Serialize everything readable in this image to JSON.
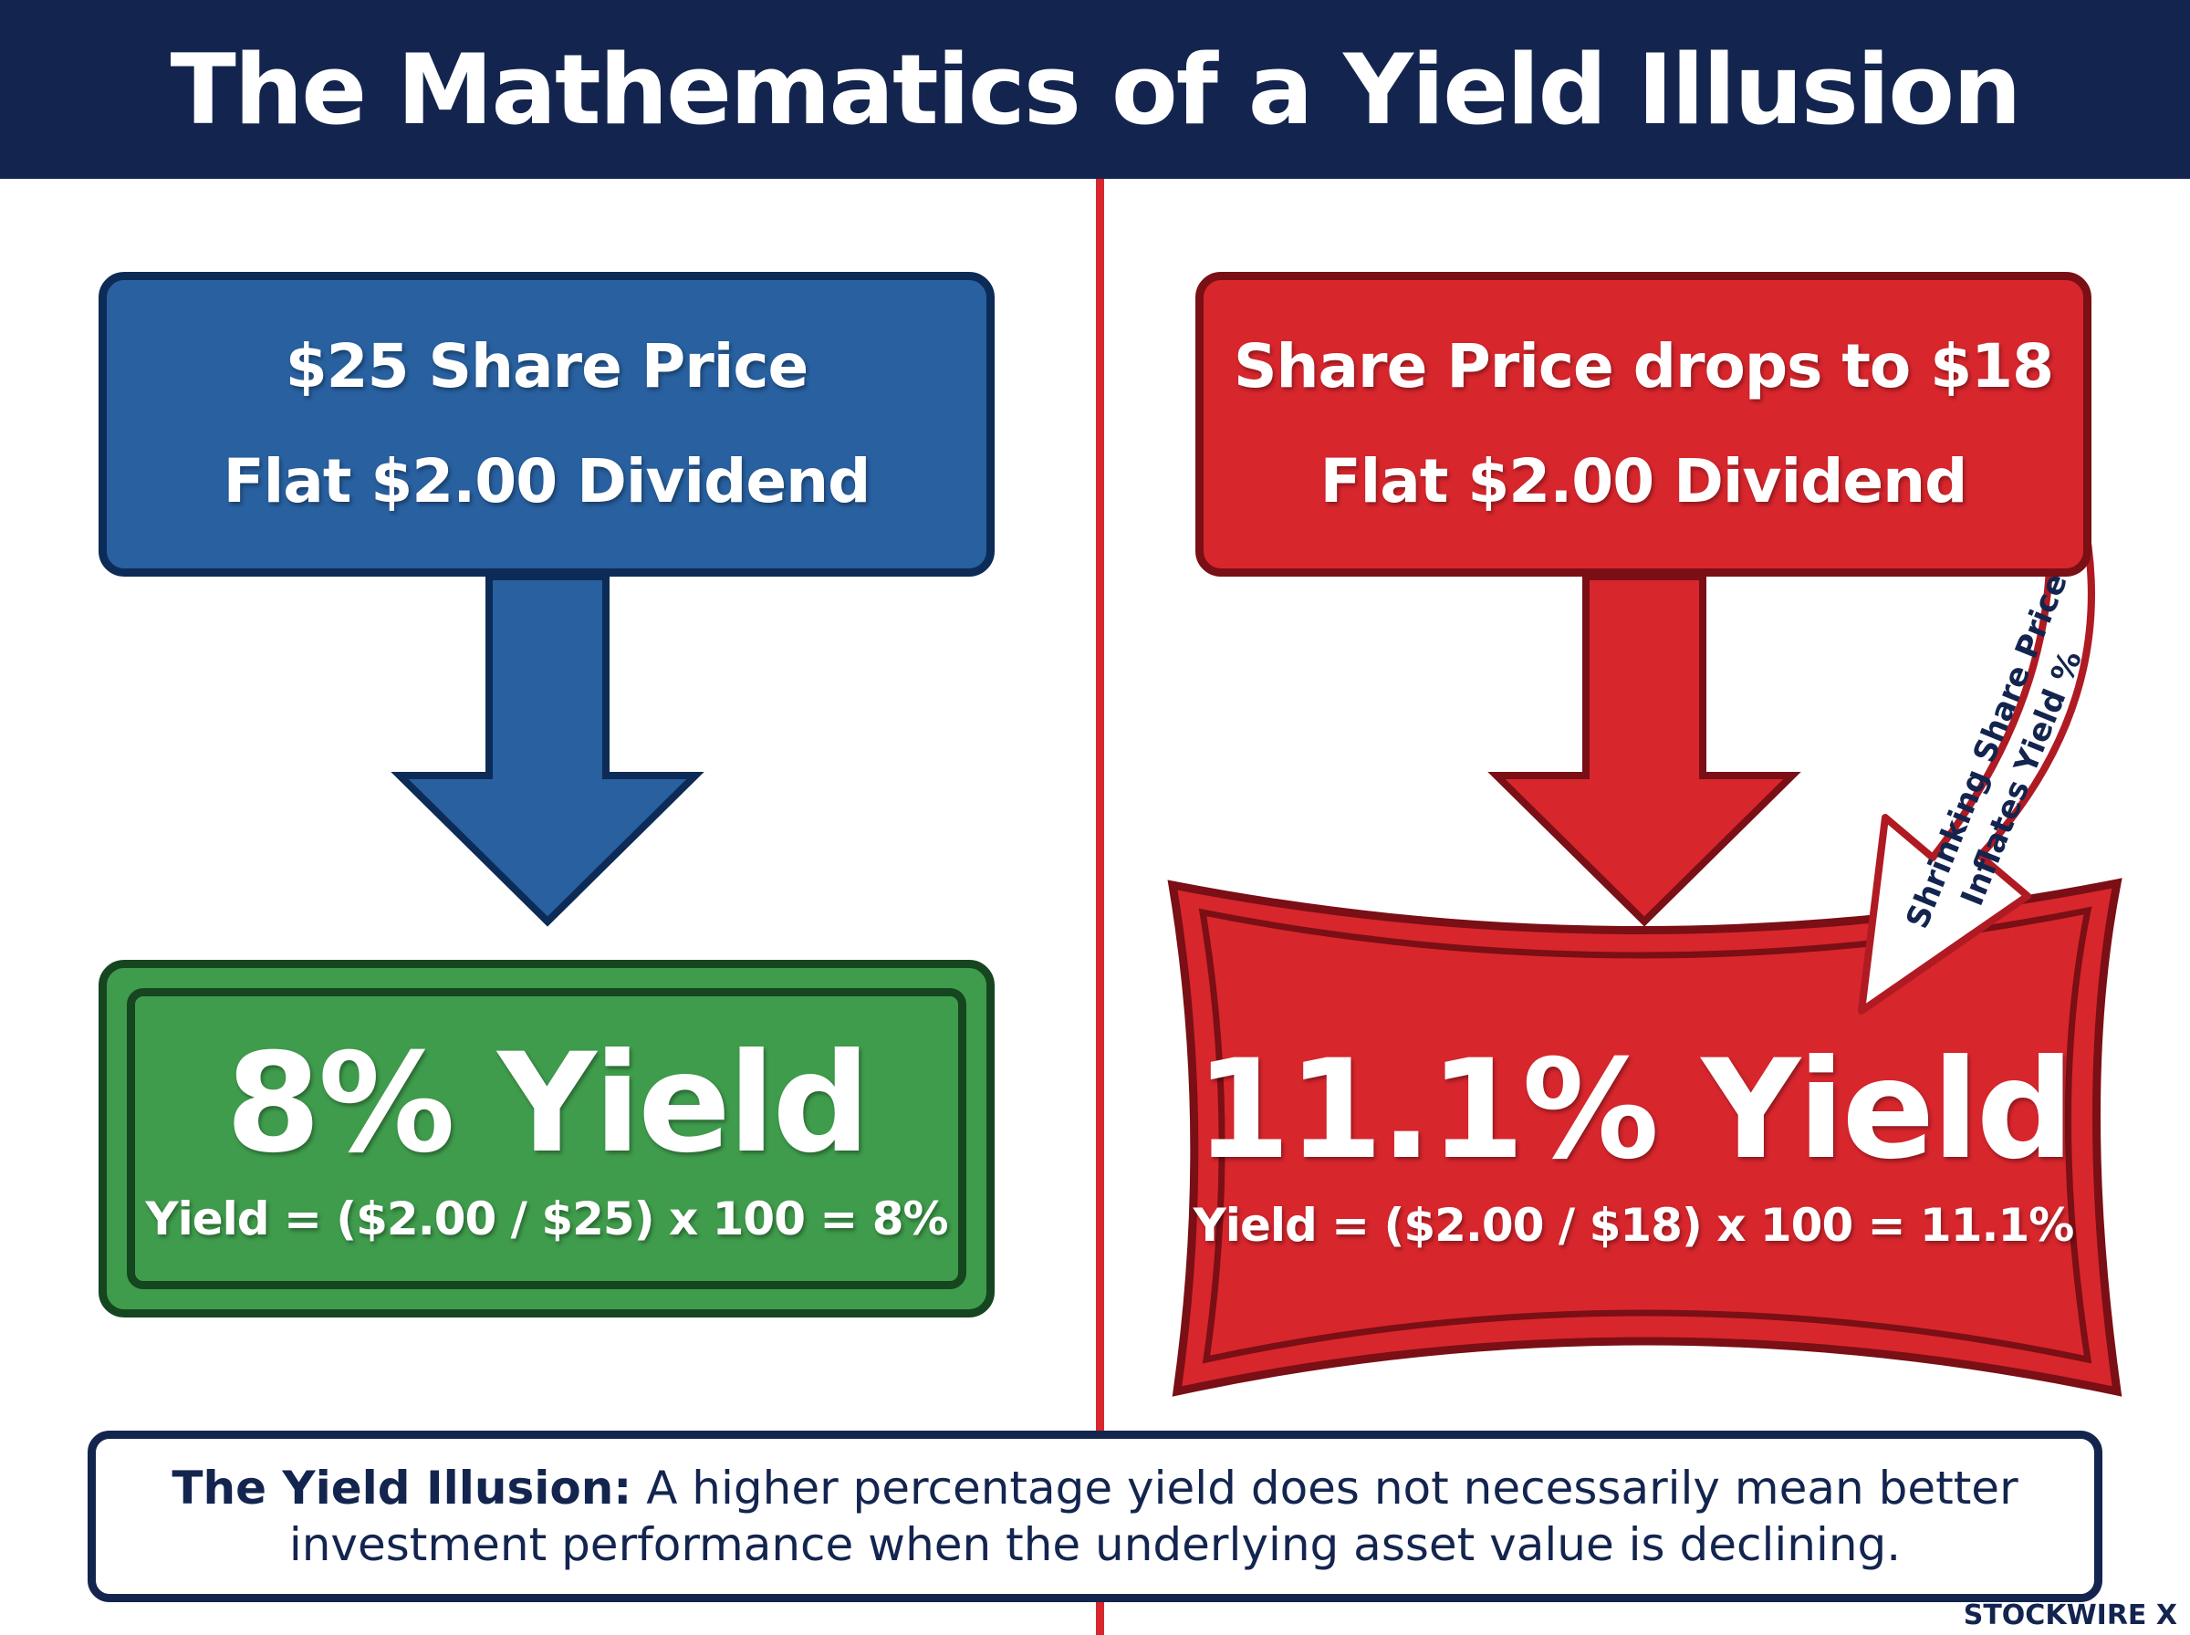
{
  "title": "The Mathematics of a Yield Illusion",
  "left": {
    "top_box": {
      "line1": "$25 Share Price",
      "line2": "Flat $2.00 Dividend"
    },
    "result": {
      "headline": "8% Yield",
      "formula": "Yield = ($2.00 / $25) x 100 = 8%"
    }
  },
  "right": {
    "top_box": {
      "line1": "Share Price drops to $18",
      "line2": "Flat $2.00 Dividend"
    },
    "result": {
      "headline": "11.1% Yield",
      "formula": "Yield = ($2.00 / $18) x 100 = 11.1%"
    },
    "curve_label_line1": "Shrinking Share Price",
    "curve_label_line2": "Inflates Yield %"
  },
  "footer": {
    "lead": "The Yield Illusion:",
    "text": " A higher percentage yield does not necessarily mean better investment performance when the underlying asset value is declining."
  },
  "brand": "STOCKWIRE X",
  "colors": {
    "navy": "#13254f",
    "blue": "#2860a0",
    "red": "#d8262d",
    "green": "#3f9c4c"
  }
}
